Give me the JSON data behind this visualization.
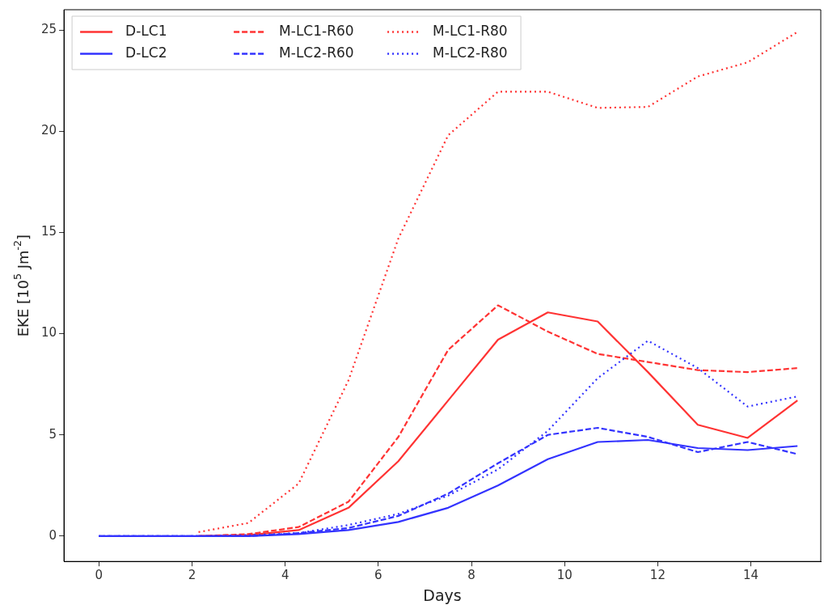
{
  "chart_data": {
    "type": "line",
    "xlabel": "Days",
    "ylabel": "EKE [10$^{5}$ Jm$^{-2}$]",
    "x": [
      0,
      1.07,
      2.14,
      3.21,
      4.29,
      5.36,
      6.43,
      7.5,
      8.57,
      9.64,
      10.71,
      11.79,
      12.86,
      13.93,
      15
    ],
    "xlim": [
      -0.75,
      15.5
    ],
    "xticks": [
      0,
      2,
      4,
      6,
      8,
      10,
      12,
      14
    ],
    "ylim": [
      -1.25,
      26
    ],
    "yticks": [
      0,
      5,
      10,
      15,
      20,
      25
    ],
    "legend": "top left",
    "grid": false,
    "marker": "none",
    "series": [
      {
        "name": "D-LC1",
        "color": "#ff3333",
        "line_style": "solid",
        "values": [
          null,
          null,
          0,
          0.05,
          0.3,
          1.4,
          3.7,
          6.7,
          9.7,
          11.05,
          10.6,
          8.1,
          5.5,
          4.85,
          6.7
        ]
      },
      {
        "name": "D-LC2",
        "color": "#3333ff",
        "line_style": "solid",
        "values": [
          0,
          0,
          0,
          0,
          0.1,
          0.3,
          0.7,
          1.4,
          2.5,
          3.8,
          4.65,
          4.75,
          4.35,
          4.25,
          4.45
        ]
      },
      {
        "name": "M-LC1-R60",
        "color": "#ff3333",
        "line_style": "dashed",
        "values": [
          null,
          null,
          0,
          0.1,
          0.45,
          1.7,
          4.9,
          9.2,
          11.4,
          10.1,
          9.0,
          8.6,
          8.2,
          8.1,
          8.3
        ]
      },
      {
        "name": "M-LC2-R60",
        "color": "#3333ff",
        "line_style": "dashed",
        "values": [
          0,
          0,
          0,
          0,
          0.15,
          0.4,
          1.0,
          2.1,
          3.6,
          5.0,
          5.35,
          4.9,
          4.15,
          4.65,
          4.05
        ]
      },
      {
        "name": "M-LC1-R80",
        "color": "#ff3333",
        "line_style": "dotted",
        "values": [
          null,
          null,
          0.2,
          0.65,
          2.6,
          7.7,
          14.7,
          19.8,
          21.95,
          21.95,
          21.15,
          21.2,
          22.7,
          23.4,
          24.9
        ]
      },
      {
        "name": "M-LC2-R80",
        "color": "#3333ff",
        "line_style": "dotted",
        "values": [
          0,
          0,
          0,
          0.05,
          0.15,
          0.55,
          1.1,
          2.0,
          3.3,
          5.2,
          7.8,
          9.65,
          8.3,
          6.4,
          6.9
        ]
      }
    ]
  }
}
